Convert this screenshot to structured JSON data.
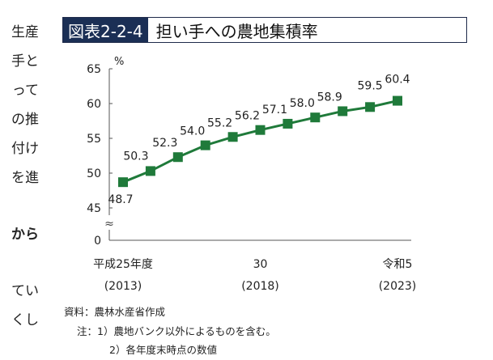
{
  "left_text": {
    "lines": [
      "生産",
      "手と",
      "って",
      "の推",
      "付け",
      "を進"
    ],
    "bold_line": "から",
    "lines2": [
      "てい",
      "くし"
    ]
  },
  "figure": {
    "badge": "図表2-2-4",
    "title": "担い手への農地集積率"
  },
  "chart_data": {
    "type": "line",
    "title": "",
    "ylabel": "%",
    "xlabel": "",
    "ylim": [
      45,
      65
    ],
    "yticks": [
      "65",
      "60",
      "55",
      "50",
      "45",
      "0"
    ],
    "axis_break": "≈",
    "x": [
      2013,
      2014,
      2015,
      2016,
      2017,
      2018,
      2019,
      2020,
      2021,
      2022,
      2023
    ],
    "series": [
      {
        "name": "",
        "values": [
          48.7,
          50.3,
          52.3,
          54.0,
          55.2,
          56.2,
          57.1,
          58.0,
          58.9,
          59.5,
          60.4
        ]
      }
    ],
    "data_labels": [
      "48.7",
      "50.3",
      "52.3",
      "54.0",
      "55.2",
      "56.2",
      "57.1",
      "58.0",
      "58.9",
      "59.5",
      "60.4"
    ],
    "x_tick_labels": [
      {
        "line1": "平成25年度",
        "line2": "(2013)"
      },
      {
        "line1": "30",
        "line2": "(2018)"
      },
      {
        "line1": "令和5",
        "line2": "(2023)"
      }
    ],
    "line_color": "#1f7a3a",
    "marker_color": "#1f7a3a"
  },
  "source": "資料：農林水産省作成",
  "notes": [
    "注：1）農地バンク以外によるものを含む。",
    "2）各年度末時点の数値"
  ]
}
